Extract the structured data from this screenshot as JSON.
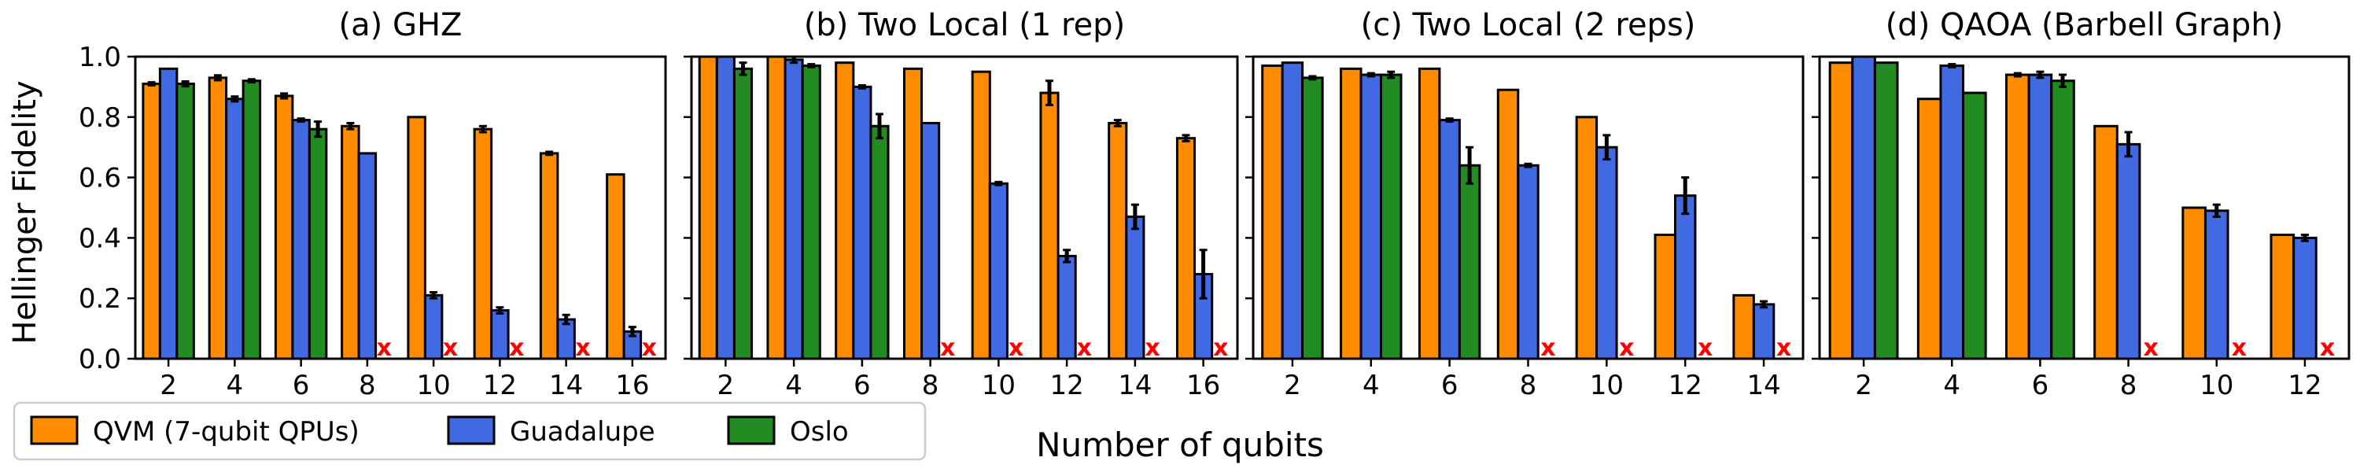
{
  "figure": {
    "ylabel": "Hellinger Fidelity",
    "xlabel": "Number of qubits",
    "legend": [
      {
        "name": "QVM (7-qubit QPUs)",
        "color": "#ff8c00"
      },
      {
        "name": "Guadalupe",
        "color": "#4169e1"
      },
      {
        "name": "Oslo",
        "color": "#228b22"
      }
    ],
    "unavailable_marker": "x",
    "yticks": [
      "0.0",
      "0.2",
      "0.4",
      "0.6",
      "0.8",
      "1.0"
    ]
  },
  "chart_data": [
    {
      "type": "bar",
      "title": "(a) GHZ",
      "categories": [
        "2",
        "4",
        "6",
        "8",
        "10",
        "12",
        "14",
        "16"
      ],
      "ylim": [
        0,
        1.0
      ],
      "series": [
        {
          "name": "QVM (7-qubit QPUs)",
          "color": "#ff8c00",
          "values": [
            0.91,
            0.93,
            0.87,
            0.77,
            0.8,
            0.76,
            0.68,
            0.61
          ],
          "errors": [
            0.005,
            0.008,
            0.008,
            0.01,
            0,
            0.01,
            0.005,
            0
          ]
        },
        {
          "name": "Guadalupe",
          "color": "#4169e1",
          "values": [
            0.96,
            0.86,
            0.79,
            0.68,
            0.21,
            0.16,
            0.13,
            0.09
          ],
          "errors": [
            0,
            0.008,
            0.005,
            0,
            0.01,
            0.01,
            0.015,
            0.015
          ]
        },
        {
          "name": "Oslo",
          "color": "#228b22",
          "values": [
            0.91,
            0.92,
            0.76,
            null,
            null,
            null,
            null,
            null
          ],
          "errors": [
            0.008,
            0.005,
            0.025,
            0,
            0,
            0,
            0,
            0
          ]
        }
      ]
    },
    {
      "type": "bar",
      "title": "(b) Two Local (1 rep)",
      "categories": [
        "2",
        "4",
        "6",
        "8",
        "10",
        "12",
        "14",
        "16"
      ],
      "ylim": [
        0,
        1.0
      ],
      "series": [
        {
          "name": "QVM (7-qubit QPUs)",
          "color": "#ff8c00",
          "values": [
            1.0,
            1.0,
            0.98,
            0.96,
            0.95,
            0.88,
            0.78,
            0.73
          ],
          "errors": [
            0,
            0,
            0,
            0,
            0,
            0.04,
            0.01,
            0.01
          ]
        },
        {
          "name": "Guadalupe",
          "color": "#4169e1",
          "values": [
            1.0,
            0.99,
            0.9,
            0.78,
            0.58,
            0.34,
            0.47,
            0.28
          ],
          "errors": [
            0,
            0.01,
            0.005,
            0,
            0.005,
            0.02,
            0.04,
            0.08
          ]
        },
        {
          "name": "Oslo",
          "color": "#228b22",
          "values": [
            0.96,
            0.97,
            0.77,
            null,
            null,
            null,
            null,
            null
          ],
          "errors": [
            0.02,
            0.005,
            0.04,
            0,
            0,
            0,
            0,
            0
          ]
        }
      ]
    },
    {
      "type": "bar",
      "title": "(c) Two Local (2 reps)",
      "categories": [
        "2",
        "4",
        "6",
        "8",
        "10",
        "12",
        "14"
      ],
      "ylim": [
        0,
        1.0
      ],
      "series": [
        {
          "name": "QVM (7-qubit QPUs)",
          "color": "#ff8c00",
          "values": [
            0.97,
            0.96,
            0.96,
            0.89,
            0.8,
            0.41,
            0.21
          ],
          "errors": [
            0,
            0,
            0,
            0,
            0,
            0,
            0
          ]
        },
        {
          "name": "Guadalupe",
          "color": "#4169e1",
          "values": [
            0.98,
            0.94,
            0.79,
            0.64,
            0.7,
            0.54,
            0.18
          ],
          "errors": [
            0,
            0.005,
            0.005,
            0.005,
            0.04,
            0.06,
            0.01
          ]
        },
        {
          "name": "Oslo",
          "color": "#228b22",
          "values": [
            0.93,
            0.94,
            0.64,
            null,
            null,
            null,
            null
          ],
          "errors": [
            0.005,
            0.01,
            0.06,
            0,
            0,
            0,
            0
          ]
        }
      ]
    },
    {
      "type": "bar",
      "title": "(d) QAOA (Barbell Graph)",
      "categories": [
        "2",
        "4",
        "6",
        "8",
        "10",
        "12"
      ],
      "ylim": [
        0,
        1.0
      ],
      "series": [
        {
          "name": "QVM (7-qubit QPUs)",
          "color": "#ff8c00",
          "values": [
            0.98,
            0.86,
            0.94,
            0.77,
            0.5,
            0.41
          ],
          "errors": [
            0,
            0,
            0.005,
            0,
            0,
            0
          ]
        },
        {
          "name": "Guadalupe",
          "color": "#4169e1",
          "values": [
            1.0,
            0.97,
            0.94,
            0.71,
            0.49,
            0.4
          ],
          "errors": [
            0,
            0.005,
            0.01,
            0.04,
            0.02,
            0.01
          ]
        },
        {
          "name": "Oslo",
          "color": "#228b22",
          "values": [
            0.98,
            0.88,
            0.92,
            null,
            null,
            null
          ],
          "errors": [
            0,
            0,
            0.02,
            0,
            0,
            0
          ]
        }
      ]
    }
  ]
}
